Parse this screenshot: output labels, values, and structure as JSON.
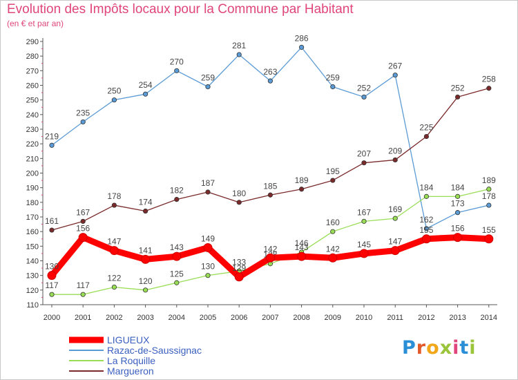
{
  "chart_data": {
    "type": "line",
    "title": "Evolution des Impôts locaux pour la Commune par Habitant",
    "subtitle": "(en € et par an)",
    "xlabel": "",
    "ylabel": "",
    "ylim": [
      110,
      290
    ],
    "ytick_step": 10,
    "x": [
      "2000",
      "2001",
      "2002",
      "2003",
      "2004",
      "2005",
      "2006",
      "2007",
      "2008",
      "2009",
      "2010",
      "2011",
      "2012",
      "2013",
      "2014"
    ],
    "series": [
      {
        "name": "LIGUEUX",
        "color": "#ff0000",
        "labelColor": "#444444",
        "values": [
          130,
          156,
          147,
          141,
          143,
          149,
          129,
          142,
          143,
          142,
          145,
          147,
          155,
          156,
          155
        ]
      },
      {
        "name": "Razac-de-Saussignac",
        "color": "#5b9bd5",
        "labelColor": "#444444",
        "values": [
          219,
          235,
          250,
          254,
          270,
          259,
          281,
          263,
          286,
          259,
          252,
          267,
          162,
          173,
          178
        ]
      },
      {
        "name": "La Roquille",
        "color": "#99dd55",
        "labelColor": "#444444",
        "values": [
          117,
          117,
          122,
          120,
          125,
          130,
          133,
          138,
          146,
          160,
          167,
          169,
          184,
          184,
          189
        ]
      },
      {
        "name": "Margueron",
        "color": "#7a2a2a",
        "labelColor": "#444444",
        "values": [
          161,
          167,
          178,
          174,
          182,
          187,
          180,
          185,
          189,
          195,
          207,
          209,
          225,
          252,
          258
        ]
      }
    ],
    "legend": "bottom-left",
    "grid": false
  },
  "logo": {
    "letters": [
      "P",
      "r",
      "o",
      "x",
      "i",
      "t",
      "i"
    ],
    "colors": [
      "#2a8fd6",
      "#e25a2b",
      "#f2a71b",
      "#9ac43a",
      "#e0457b",
      "#2a8fd6",
      "#9ac43a"
    ]
  }
}
